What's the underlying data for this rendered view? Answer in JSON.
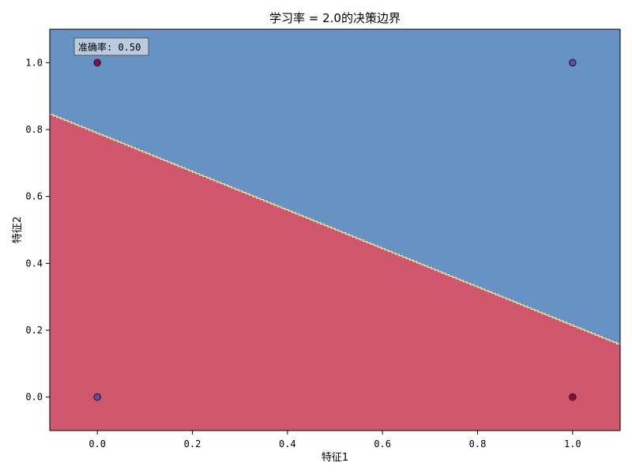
{
  "chart_data": {
    "type": "scatter",
    "title": "学习率 = 2.0的决策边界",
    "xlabel": "特征1",
    "ylabel": "特征2",
    "xlim": [
      -0.1,
      1.1
    ],
    "ylim": [
      -0.1,
      1.1
    ],
    "xticks": [
      "0.0",
      "0.2",
      "0.4",
      "0.6",
      "0.8",
      "1.0"
    ],
    "yticks": [
      "0.0",
      "0.2",
      "0.4",
      "0.6",
      "0.8",
      "1.0"
    ],
    "grid": false,
    "annotation": "准确率: 0.50",
    "boundary": {
      "x": [
        -0.1,
        1.1
      ],
      "y": [
        0.845,
        0.155
      ]
    },
    "regions": {
      "below": "#d0566d",
      "above": "#6693c3"
    },
    "boundary_color": "#f4f099",
    "points": [
      {
        "x": 0,
        "y": 0,
        "color": "#5e4fa2"
      },
      {
        "x": 0,
        "y": 1,
        "color": "#9e0142"
      },
      {
        "x": 1,
        "y": 0,
        "color": "#9e0142"
      },
      {
        "x": 1,
        "y": 1,
        "color": "#5e4fa2"
      }
    ]
  }
}
